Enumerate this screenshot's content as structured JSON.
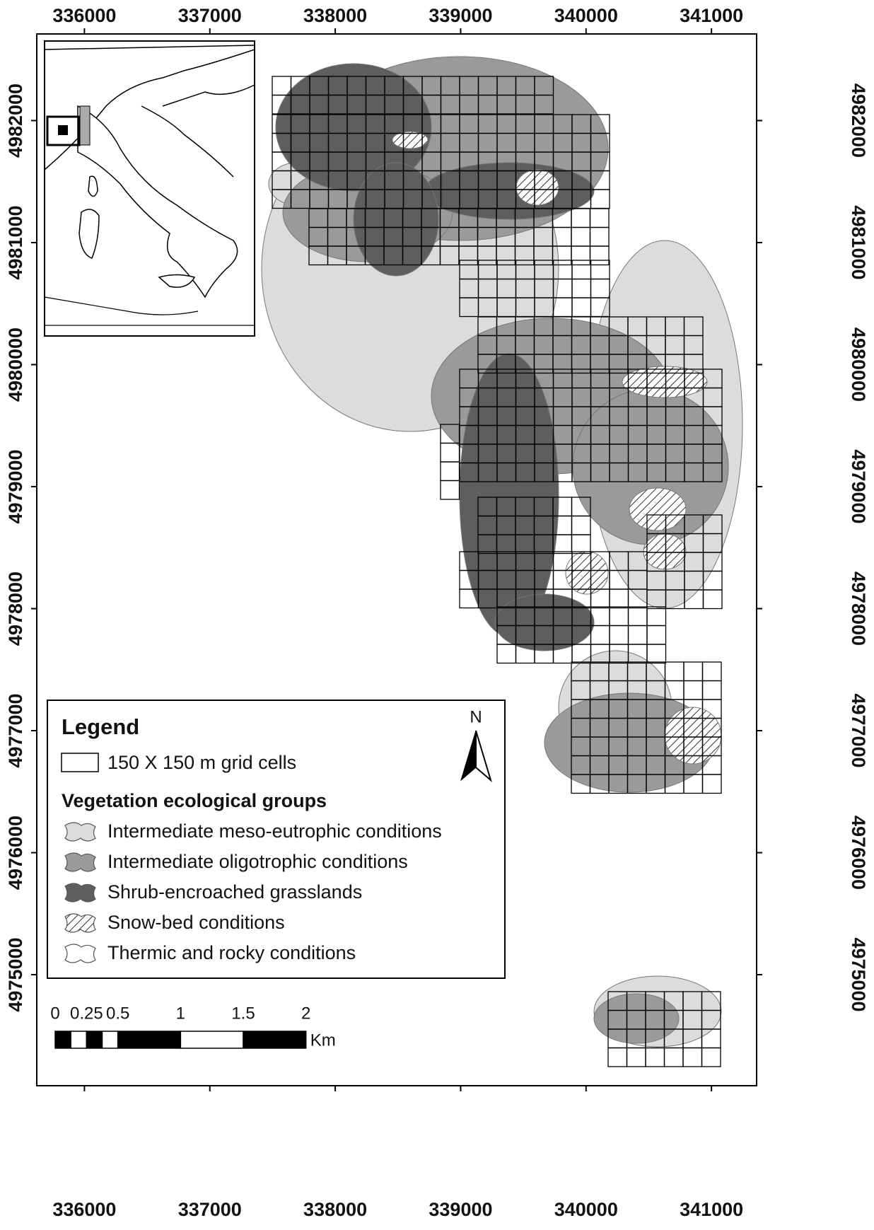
{
  "map": {
    "xlim": [
      335620,
      341360
    ],
    "ylim": [
      4974090,
      4982710
    ],
    "xticks": [
      336000,
      337000,
      338000,
      339000,
      340000,
      341000
    ],
    "yticks": [
      4975000,
      4976000,
      4977000,
      4978000,
      4979000,
      4980000,
      4981000,
      4982000
    ],
    "legend": {
      "title": "Legend",
      "grid_cells": "150 X 150 m grid cells",
      "groups_title": "Vegetation ecological groups",
      "groups": [
        {
          "name": "Intermediate meso-eutrophic conditions",
          "color": "#dcdcdc"
        },
        {
          "name": "Intermediate oligotrophic conditions",
          "color": "#9a9a9a"
        },
        {
          "name": "Shrub-encroached grasslands",
          "color": "#5e5e5e"
        },
        {
          "name": "Snow-bed conditions",
          "color": "url(#hatch)"
        },
        {
          "name": "Thermic and rocky conditions",
          "color": "#ffffff"
        }
      ]
    },
    "north": "N",
    "scale_bar": {
      "ticks": [
        0,
        0.25,
        0.5,
        1,
        1.5,
        2
      ],
      "unit": "Km"
    }
  }
}
